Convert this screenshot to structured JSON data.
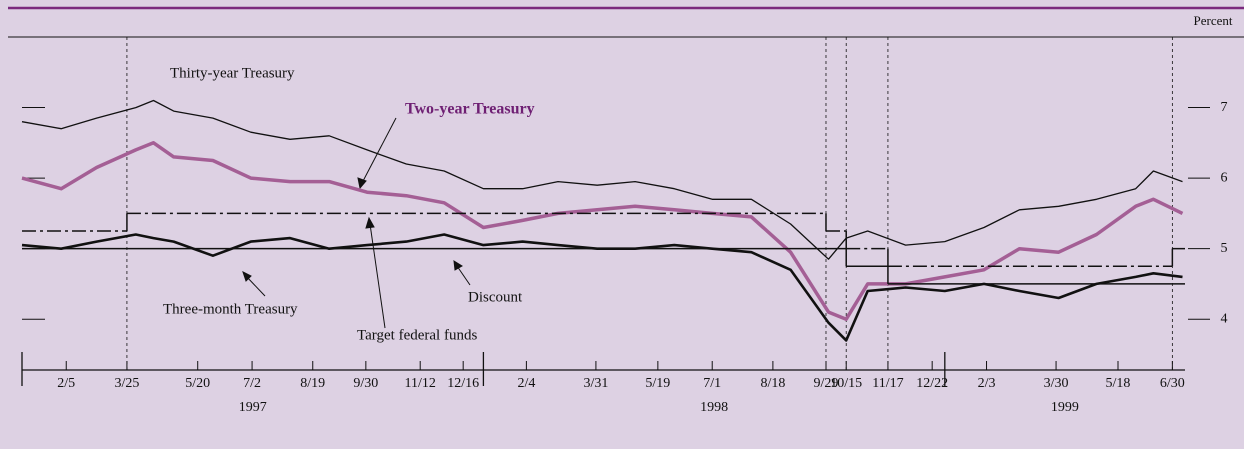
{
  "chart_data": {
    "type": "line",
    "y_axis_label": "Percent",
    "xlim": [
      "1997-01-01",
      "1999-07-10"
    ],
    "ylim": [
      3.28,
      8.0
    ],
    "yticks": [
      4,
      5,
      6,
      7
    ],
    "xticks": [
      {
        "value": "1997-02-05",
        "label": "2/5"
      },
      {
        "value": "1997-03-25",
        "label": "3/25"
      },
      {
        "value": "1997-05-20",
        "label": "5/20"
      },
      {
        "value": "1997-07-02",
        "label": "7/2"
      },
      {
        "value": "1997-08-19",
        "label": "8/19"
      },
      {
        "value": "1997-09-30",
        "label": "9/30"
      },
      {
        "value": "1997-11-12",
        "label": "11/12"
      },
      {
        "value": "1997-12-16",
        "label": "12/16"
      },
      {
        "value": "1998-02-04",
        "label": "2/4"
      },
      {
        "value": "1998-03-31",
        "label": "3/31"
      },
      {
        "value": "1998-05-19",
        "label": "5/19"
      },
      {
        "value": "1998-07-01",
        "label": "7/1"
      },
      {
        "value": "1998-08-18",
        "label": "8/18"
      },
      {
        "value": "1998-09-29",
        "label": "9/29"
      },
      {
        "value": "1998-10-15",
        "label": "10/15"
      },
      {
        "value": "1998-11-17",
        "label": "11/17"
      },
      {
        "value": "1998-12-22",
        "label": "12/22"
      },
      {
        "value": "1999-02-03",
        "label": "2/3"
      },
      {
        "value": "1999-03-30",
        "label": "3/30"
      },
      {
        "value": "1999-05-18",
        "label": "5/18"
      },
      {
        "value": "1999-06-30",
        "label": "6/30"
      }
    ],
    "years": [
      1997,
      1998,
      1999
    ],
    "event_lines": [
      "1997-03-25",
      "1998-09-29",
      "1998-10-15",
      "1998-11-17",
      "1999-06-30"
    ],
    "x": [
      "1997-01-01",
      "1997-02-01",
      "1997-03-01",
      "1997-04-01",
      "1997-04-15",
      "1997-05-01",
      "1997-06-01",
      "1997-07-01",
      "1997-08-01",
      "1997-09-01",
      "1997-10-01",
      "1997-11-01",
      "1997-12-01",
      "1998-01-01",
      "1998-02-01",
      "1998-03-01",
      "1998-04-01",
      "1998-05-01",
      "1998-06-01",
      "1998-07-01",
      "1998-08-01",
      "1998-09-01",
      "1998-10-01",
      "1998-10-15",
      "1998-11-01",
      "1998-12-01",
      "1999-01-01",
      "1999-02-01",
      "1999-03-01",
      "1999-04-01",
      "1999-05-01",
      "1999-06-01",
      "1999-06-15",
      "1999-07-08"
    ],
    "series": [
      {
        "name": "Thirty-year Treasury",
        "color": "#111111",
        "width": 1.3,
        "values": [
          6.8,
          6.7,
          6.85,
          7.0,
          7.1,
          6.95,
          6.85,
          6.65,
          6.55,
          6.6,
          6.4,
          6.2,
          6.1,
          5.85,
          5.85,
          5.95,
          5.9,
          5.95,
          5.85,
          5.7,
          5.7,
          5.35,
          4.85,
          5.15,
          5.25,
          5.05,
          5.1,
          5.3,
          5.55,
          5.6,
          5.7,
          5.85,
          6.1,
          5.95
        ]
      },
      {
        "name": "Two-year Treasury",
        "color": "#a45f95",
        "width": 3.5,
        "bold": true,
        "values": [
          6.0,
          5.85,
          6.15,
          6.4,
          6.5,
          6.3,
          6.25,
          6.0,
          5.95,
          5.95,
          5.8,
          5.75,
          5.65,
          5.3,
          5.4,
          5.5,
          5.55,
          5.6,
          5.55,
          5.5,
          5.45,
          4.95,
          4.1,
          4.0,
          4.5,
          4.5,
          4.6,
          4.7,
          5.0,
          4.95,
          5.2,
          5.6,
          5.7,
          5.5
        ]
      },
      {
        "name": "Three-month Treasury",
        "color": "#111111",
        "width": 2.6,
        "values": [
          5.05,
          5.0,
          5.1,
          5.2,
          5.15,
          5.1,
          4.9,
          5.1,
          5.15,
          5.0,
          5.05,
          5.1,
          5.2,
          5.05,
          5.1,
          5.05,
          5.0,
          5.0,
          5.05,
          5.0,
          4.95,
          4.7,
          3.95,
          3.7,
          4.4,
          4.45,
          4.4,
          4.5,
          4.4,
          4.3,
          4.5,
          4.6,
          4.65,
          4.6
        ]
      },
      {
        "name": "Target federal funds",
        "color": "#111111",
        "width": 1.5,
        "step": true,
        "dash": "dashdot",
        "x": [
          "1997-01-01",
          "1997-03-25",
          "1998-09-29",
          "1998-10-15",
          "1998-11-17",
          "1999-06-30"
        ],
        "values": [
          5.25,
          5.5,
          5.25,
          5.0,
          4.75,
          5.0
        ]
      },
      {
        "name": "Discount",
        "color": "#111111",
        "width": 1.5,
        "step": true,
        "dash": "solid",
        "x": [
          "1997-01-01",
          "1998-10-15",
          "1998-11-17"
        ],
        "values": [
          5.0,
          4.75,
          4.5
        ]
      }
    ]
  }
}
